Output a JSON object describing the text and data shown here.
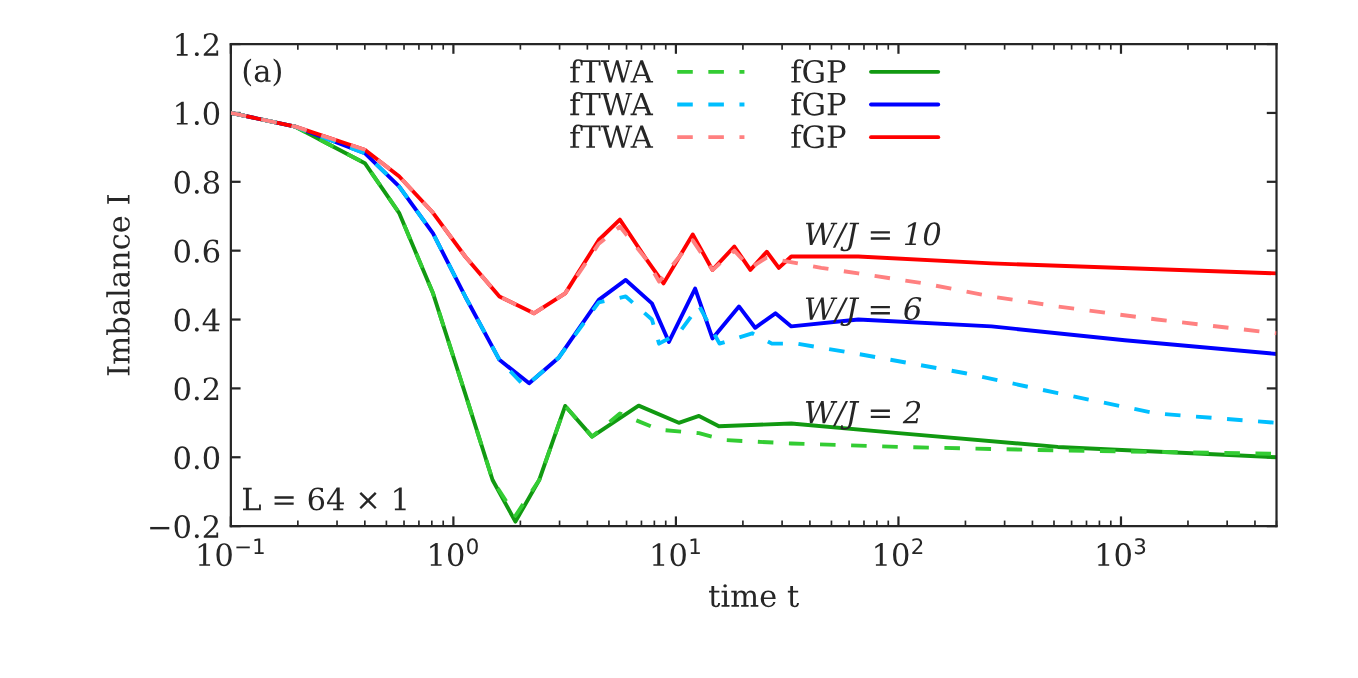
{
  "chart_data": {
    "type": "line",
    "xlabel": "time t",
    "ylabel": "Imbalance I",
    "log": "x",
    "xlim": [
      0.1,
      5000
    ],
    "xticks": [
      {
        "value": 0.1,
        "label": "10$^{−1}$"
      },
      {
        "value": 1,
        "label": "10$^{0}$"
      },
      {
        "value": 10,
        "label": "10$^{1}$"
      },
      {
        "value": 100,
        "label": "10$^{2}$"
      },
      {
        "value": 1000,
        "label": "10$^{3}$"
      }
    ],
    "ylim": [
      -0.2,
      1.2
    ],
    "yticks": [
      {
        "value": -0.2,
        "label": "−0.2"
      },
      {
        "value": 0,
        "label": "0.0"
      },
      {
        "value": 0.2,
        "label": "0.2"
      },
      {
        "value": 0.4,
        "label": "0.4"
      },
      {
        "value": 0.6,
        "label": "0.6"
      },
      {
        "value": 0.8,
        "label": "0.8"
      },
      {
        "value": 1.0,
        "label": "1.0"
      },
      {
        "value": 1.2,
        "label": "1.2"
      }
    ],
    "grid": false,
    "legend": "top",
    "marker": "none",
    "series": [
      {
        "name": "fTWA",
        "color": "#33cc33",
        "line_style": "dashed",
        "x": [
          0.1,
          0.195,
          0.4,
          0.57,
          0.81,
          1.13,
          1.5,
          1.9,
          2.43,
          3.18,
          4.2,
          5.6,
          8.4,
          12.7,
          16.6,
          33,
          100,
          520,
          5000
        ],
        "values": [
          1.0,
          0.96,
          0.854,
          0.71,
          0.476,
          0.185,
          -0.066,
          -0.17,
          -0.066,
          0.149,
          0.06,
          0.127,
          0.08,
          0.07,
          0.05,
          0.04,
          0.03,
          0.02,
          0.01
        ]
      },
      {
        "name": "fTWA",
        "color": "#00bfff",
        "line_style": "dashed",
        "x": [
          0.1,
          0.195,
          0.4,
          0.57,
          0.81,
          1.13,
          1.61,
          2.1,
          2.98,
          4.5,
          5.95,
          7.8,
          8.4,
          10.3,
          12.7,
          15.7,
          22,
          27,
          35,
          66,
          200,
          520,
          1450,
          5000
        ],
        "values": [
          1.0,
          0.96,
          0.883,
          0.787,
          0.65,
          0.467,
          0.283,
          0.205,
          0.29,
          0.45,
          0.467,
          0.4,
          0.33,
          0.36,
          0.44,
          0.33,
          0.36,
          0.33,
          0.33,
          0.3,
          0.244,
          0.186,
          0.127,
          0.1
        ]
      },
      {
        "name": "fTWA",
        "color": "#ff8080",
        "line_style": "dashed",
        "x": [
          0.1,
          0.195,
          0.4,
          0.57,
          0.81,
          1.13,
          1.61,
          2.3,
          3.18,
          4.5,
          5.6,
          7.4,
          8.4,
          11.9,
          14.6,
          18.3,
          21.6,
          25.6,
          45,
          66,
          130,
          262,
          520,
          1450,
          5000
        ],
        "values": [
          1.0,
          0.96,
          0.893,
          0.816,
          0.71,
          0.583,
          0.467,
          0.418,
          0.476,
          0.62,
          0.67,
          0.573,
          0.51,
          0.63,
          0.544,
          0.6,
          0.55,
          0.58,
          0.55,
          0.534,
          0.505,
          0.467,
          0.438,
          0.4,
          0.36
        ]
      },
      {
        "name": "fGP",
        "color": "#119911",
        "line_style": "solid",
        "x": [
          0.1,
          0.195,
          0.4,
          0.57,
          0.81,
          1.13,
          1.5,
          1.9,
          2.43,
          3.18,
          4.2,
          6.8,
          10.3,
          12.7,
          15.6,
          33,
          100,
          520,
          5000
        ],
        "values": [
          1.0,
          0.96,
          0.854,
          0.71,
          0.476,
          0.185,
          -0.066,
          -0.187,
          -0.066,
          0.149,
          0.06,
          0.15,
          0.1,
          0.12,
          0.09,
          0.098,
          0.07,
          0.03,
          0.0
        ]
      },
      {
        "name": "fGP",
        "color": "#0000ff",
        "line_style": "solid",
        "x": [
          0.1,
          0.195,
          0.4,
          0.57,
          0.81,
          1.13,
          1.61,
          2.19,
          2.98,
          4.5,
          5.95,
          7.8,
          9.3,
          12.2,
          14.6,
          19.2,
          22.7,
          28,
          33,
          66,
          262,
          1040,
          5000
        ],
        "values": [
          1.0,
          0.96,
          0.883,
          0.787,
          0.65,
          0.467,
          0.283,
          0.215,
          0.29,
          0.457,
          0.515,
          0.447,
          0.335,
          0.49,
          0.345,
          0.438,
          0.376,
          0.418,
          0.38,
          0.4,
          0.38,
          0.34,
          0.3
        ]
      },
      {
        "name": "fGP",
        "color": "#ff0000",
        "line_style": "solid",
        "x": [
          0.1,
          0.195,
          0.4,
          0.57,
          0.81,
          1.13,
          1.61,
          2.3,
          3.18,
          4.5,
          5.6,
          7.4,
          8.8,
          11.9,
          14.6,
          18.3,
          21.6,
          25.6,
          29,
          33,
          66,
          262,
          5000
        ],
        "values": [
          1.0,
          0.96,
          0.893,
          0.816,
          0.71,
          0.583,
          0.467,
          0.418,
          0.476,
          0.631,
          0.69,
          0.573,
          0.505,
          0.647,
          0.544,
          0.612,
          0.544,
          0.597,
          0.55,
          0.583,
          0.583,
          0.563,
          0.534
        ]
      }
    ],
    "annotations": [
      "(a)",
      "L = 64 × 1",
      "W/J = 10",
      "W/J = 6",
      "W/J = 2"
    ]
  }
}
